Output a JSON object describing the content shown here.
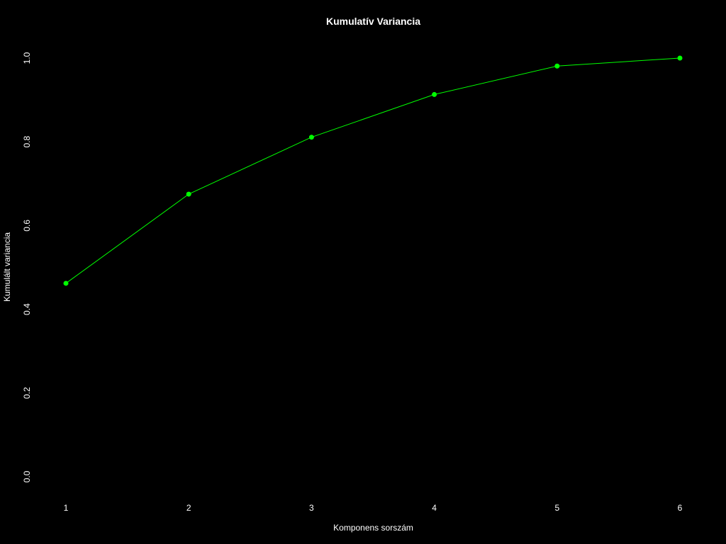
{
  "chart_data": {
    "type": "line",
    "title": "Kumulatív Variancia",
    "xlabel": "Komponens sorszám",
    "ylabel": "Kumulált variancia",
    "x": [
      1,
      2,
      3,
      4,
      5,
      6
    ],
    "y": [
      0.462,
      0.675,
      0.811,
      0.913,
      0.981,
      1.0
    ],
    "x_ticks": [
      "1",
      "2",
      "3",
      "4",
      "5",
      "6"
    ],
    "y_ticks": [
      "0.0",
      "0.2",
      "0.4",
      "0.6",
      "0.8",
      "1.0"
    ],
    "y_tick_values": [
      0.0,
      0.2,
      0.4,
      0.6,
      0.8,
      1.0
    ],
    "xlim": [
      1,
      6
    ],
    "ylim": [
      0,
      1
    ],
    "grid": false,
    "line_color": "#00ff00",
    "point_color": "#00ff00",
    "background_color": "#000000",
    "text_color": "#ffffff"
  }
}
